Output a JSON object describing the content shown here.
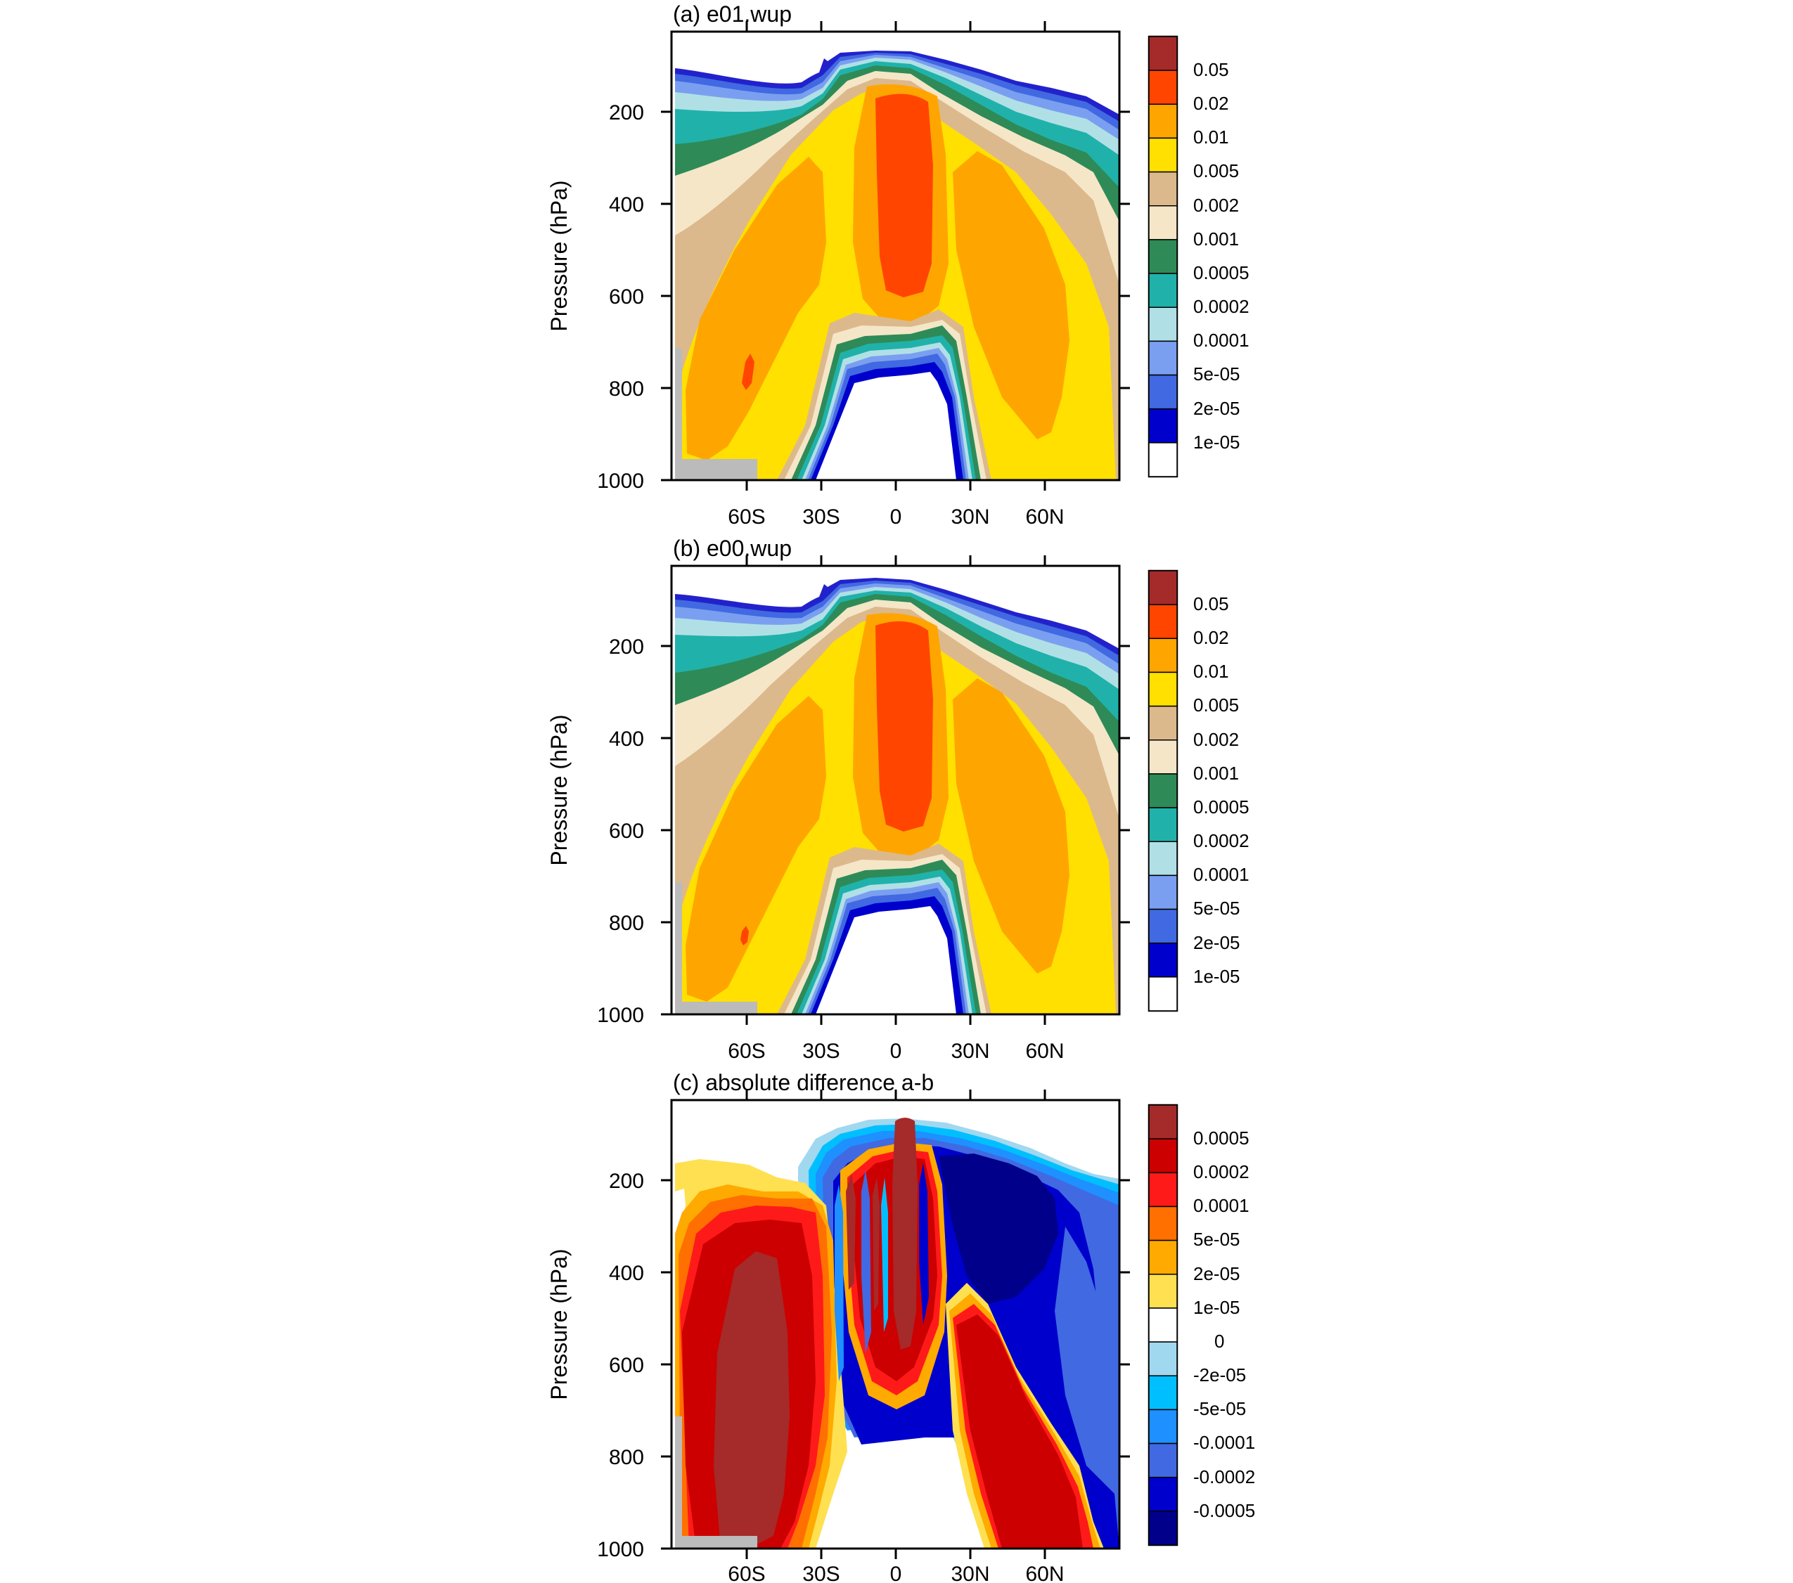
{
  "chart_data": [
    {
      "type": "heatmap",
      "panel": "a",
      "title": "(a) e01.wup",
      "ylabel": "Pressure (hPa)",
      "xlabel": "",
      "x_ticks": [
        "60S",
        "30S",
        "0",
        "30N",
        "60N"
      ],
      "x_tick_values": [
        -60,
        -30,
        0,
        30,
        60
      ],
      "y_ticks": [
        "200",
        "400",
        "600",
        "800",
        "1000"
      ],
      "y_tick_values": [
        200,
        400,
        600,
        800,
        1000
      ],
      "xlim": [
        -90,
        90
      ],
      "ylim": [
        1000,
        30
      ],
      "colorbar": {
        "labels": [
          "0.05",
          "0.02",
          "0.01",
          "0.005",
          "0.002",
          "0.001",
          "0.0005",
          "0.0002",
          "0.0001",
          "5e-05",
          "2e-05",
          "1e-05"
        ],
        "colors": [
          "#a52a2a",
          "#ff4500",
          "#ffa500",
          "#ffe000",
          "#dcb98c",
          "#f5e6c8",
          "#2e8b57",
          "#20b2aa",
          "#b0e0e6",
          "#7b9ff0",
          "#4169e1",
          "#0000cd",
          "#ffffff"
        ]
      }
    },
    {
      "type": "heatmap",
      "panel": "b",
      "title": "(b) e00.wup",
      "ylabel": "Pressure (hPa)",
      "xlabel": "",
      "x_ticks": [
        "60S",
        "30S",
        "0",
        "30N",
        "60N"
      ],
      "x_tick_values": [
        -60,
        -30,
        0,
        30,
        60
      ],
      "y_ticks": [
        "200",
        "400",
        "600",
        "800",
        "1000"
      ],
      "y_tick_values": [
        200,
        400,
        600,
        800,
        1000
      ],
      "xlim": [
        -90,
        90
      ],
      "ylim": [
        1000,
        30
      ],
      "colorbar": {
        "labels": [
          "0.05",
          "0.02",
          "0.01",
          "0.005",
          "0.002",
          "0.001",
          "0.0005",
          "0.0002",
          "0.0001",
          "5e-05",
          "2e-05",
          "1e-05"
        ],
        "colors": [
          "#a52a2a",
          "#ff4500",
          "#ffa500",
          "#ffe000",
          "#dcb98c",
          "#f5e6c8",
          "#2e8b57",
          "#20b2aa",
          "#b0e0e6",
          "#7b9ff0",
          "#4169e1",
          "#0000cd",
          "#ffffff"
        ]
      }
    },
    {
      "type": "heatmap",
      "panel": "c",
      "title": "(c) absolute difference a-b",
      "ylabel": "Pressure (hPa)",
      "xlabel": "",
      "x_ticks": [
        "60S",
        "30S",
        "0",
        "30N",
        "60N"
      ],
      "x_tick_values": [
        -60,
        -30,
        0,
        30,
        60
      ],
      "y_ticks": [
        "200",
        "400",
        "600",
        "800",
        "1000"
      ],
      "y_tick_values": [
        200,
        400,
        600,
        800,
        1000
      ],
      "xlim": [
        -90,
        90
      ],
      "ylim": [
        1000,
        30
      ],
      "colorbar": {
        "labels": [
          "0.0005",
          "0.0002",
          "0.0001",
          "5e-05",
          "2e-05",
          "1e-05",
          "0",
          "-2e-05",
          "-5e-05",
          "-0.0001",
          "-0.0002",
          "-0.0005"
        ],
        "colors": [
          "#a52a2a",
          "#cc0000",
          "#ff1a1a",
          "#ff7000",
          "#ffaa00",
          "#ffe050",
          "#ffffff",
          "#a0d8f0",
          "#00bfff",
          "#1e90ff",
          "#4169e1",
          "#0000cd",
          "#00008b"
        ]
      }
    }
  ]
}
